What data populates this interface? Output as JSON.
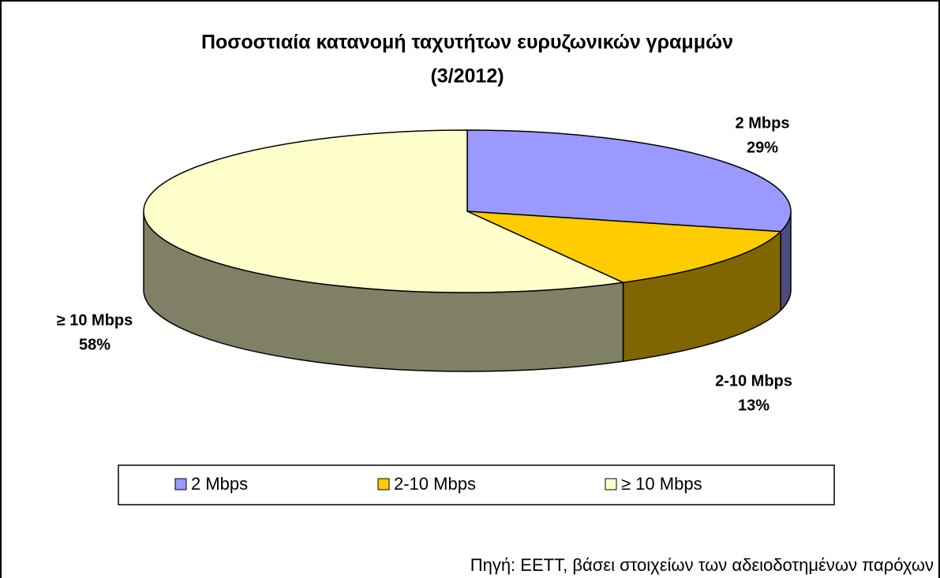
{
  "chart_data": {
    "type": "pie3d",
    "title": "Ποσοστιαία κατανομή ταχυτήτων ευρυζωνικών γραμμών",
    "subtitle": "(3/2012)",
    "categories": [
      "2 Mbps",
      "2-10 Mbps",
      "≥ 10 Mbps"
    ],
    "values": [
      29,
      13,
      58
    ],
    "value_labels": [
      "29%",
      "13%",
      "58%"
    ],
    "colors": [
      "#9999ff",
      "#ffcc00",
      "#ffffcc"
    ],
    "legend": "bottom",
    "source": "Πηγή: ΕΕΤΤ, βάσει στοιχείων των αδειοδοτημένων παρόχων"
  }
}
